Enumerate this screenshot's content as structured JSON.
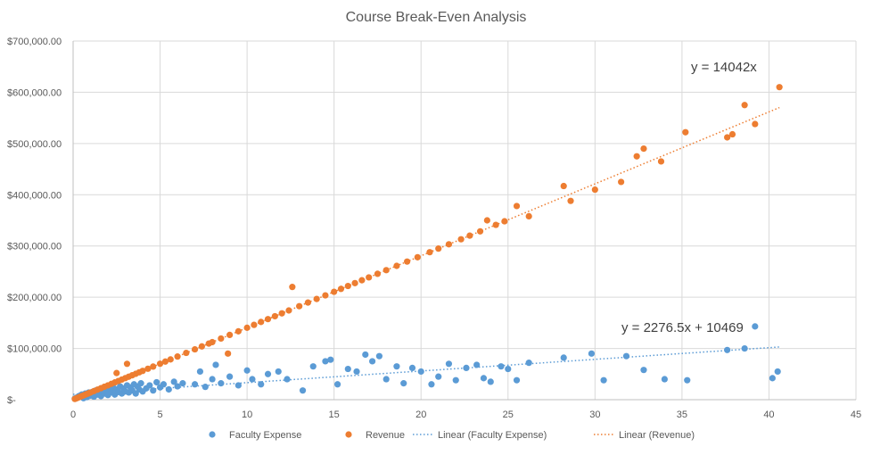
{
  "chart_data": {
    "type": "scatter",
    "title": "Course Break-Even Analysis",
    "xlabel": "",
    "ylabel": "",
    "xlim": [
      0,
      45
    ],
    "ylim": [
      0,
      700000
    ],
    "x_ticks": [
      "0",
      "5",
      "10",
      "15",
      "20",
      "25",
      "30",
      "35",
      "40",
      "45"
    ],
    "y_ticks": [
      "$-",
      "$100,000.00",
      "$200,000.00",
      "$300,000.00",
      "$400,000.00",
      "$500,000.00",
      "$600,000.00",
      "$700,000.00"
    ],
    "grid": true,
    "legend_position": "bottom",
    "legend": [
      {
        "label": "Faculty Expense",
        "kind": "marker",
        "color": "#5B9BD5"
      },
      {
        "label": "Revenue",
        "kind": "marker",
        "color": "#ED7D31"
      },
      {
        "label": "Linear (Faculty Expense)",
        "kind": "dotted-line",
        "color": "#5B9BD5"
      },
      {
        "label": "Linear (Revenue)",
        "kind": "dotted-line",
        "color": "#ED7D31"
      }
    ],
    "series": [
      {
        "name": "Faculty Expense",
        "color": "#5B9BD5",
        "points": [
          [
            0.1,
            2000
          ],
          [
            0.2,
            4000
          ],
          [
            0.3,
            6000
          ],
          [
            0.4,
            8000
          ],
          [
            0.5,
            10000
          ],
          [
            0.6,
            3000
          ],
          [
            0.7,
            12000
          ],
          [
            0.8,
            5000
          ],
          [
            0.9,
            14000
          ],
          [
            1.0,
            8000
          ],
          [
            1.1,
            15000
          ],
          [
            1.2,
            6000
          ],
          [
            1.3,
            18000
          ],
          [
            1.4,
            10000
          ],
          [
            1.5,
            20000
          ],
          [
            1.6,
            7000
          ],
          [
            1.7,
            16000
          ],
          [
            1.8,
            12000
          ],
          [
            1.9,
            22000
          ],
          [
            2.0,
            9000
          ],
          [
            2.1,
            18000
          ],
          [
            2.2,
            14000
          ],
          [
            2.3,
            24000
          ],
          [
            2.4,
            10000
          ],
          [
            2.5,
            20000
          ],
          [
            2.6,
            15000
          ],
          [
            2.7,
            26000
          ],
          [
            2.8,
            12000
          ],
          [
            2.9,
            22000
          ],
          [
            3.0,
            16000
          ],
          [
            3.1,
            28000
          ],
          [
            3.2,
            14000
          ],
          [
            3.3,
            24000
          ],
          [
            3.4,
            18000
          ],
          [
            3.5,
            30000
          ],
          [
            3.6,
            12000
          ],
          [
            3.7,
            26000
          ],
          [
            3.8,
            20000
          ],
          [
            3.9,
            32000
          ],
          [
            4.0,
            16000
          ],
          [
            4.2,
            22000
          ],
          [
            4.4,
            28000
          ],
          [
            4.6,
            18000
          ],
          [
            4.8,
            34000
          ],
          [
            5.0,
            24000
          ],
          [
            5.2,
            30000
          ],
          [
            5.5,
            20000
          ],
          [
            5.8,
            35000
          ],
          [
            6.0,
            26000
          ],
          [
            6.3,
            32000
          ],
          [
            7.0,
            30000
          ],
          [
            7.3,
            55000
          ],
          [
            7.6,
            25000
          ],
          [
            8.0,
            40000
          ],
          [
            8.2,
            68000
          ],
          [
            8.5,
            32000
          ],
          [
            9.0,
            45000
          ],
          [
            9.5,
            28000
          ],
          [
            10.0,
            57000
          ],
          [
            10.3,
            40000
          ],
          [
            10.8,
            30000
          ],
          [
            11.2,
            50000
          ],
          [
            11.8,
            55000
          ],
          [
            12.3,
            40000
          ],
          [
            13.2,
            18000
          ],
          [
            13.8,
            65000
          ],
          [
            14.5,
            75000
          ],
          [
            14.8,
            78000
          ],
          [
            15.2,
            30000
          ],
          [
            15.8,
            60000
          ],
          [
            16.3,
            55000
          ],
          [
            16.8,
            88000
          ],
          [
            17.2,
            75000
          ],
          [
            17.6,
            85000
          ],
          [
            18.0,
            40000
          ],
          [
            18.6,
            65000
          ],
          [
            19.0,
            32000
          ],
          [
            19.5,
            62000
          ],
          [
            20.0,
            55000
          ],
          [
            20.6,
            30000
          ],
          [
            21.0,
            45000
          ],
          [
            21.6,
            70000
          ],
          [
            22.0,
            38000
          ],
          [
            22.6,
            62000
          ],
          [
            23.2,
            68000
          ],
          [
            23.6,
            42000
          ],
          [
            24.0,
            35000
          ],
          [
            24.6,
            65000
          ],
          [
            25.0,
            60000
          ],
          [
            25.5,
            38000
          ],
          [
            26.2,
            72000
          ],
          [
            28.2,
            82000
          ],
          [
            29.8,
            90000
          ],
          [
            30.5,
            38000
          ],
          [
            31.8,
            85000
          ],
          [
            32.8,
            58000
          ],
          [
            34.0,
            40000
          ],
          [
            35.3,
            38000
          ],
          [
            37.6,
            97000
          ],
          [
            38.6,
            100000
          ],
          [
            39.2,
            143000
          ],
          [
            40.2,
            42000
          ],
          [
            40.5,
            55000
          ]
        ]
      },
      {
        "name": "Revenue",
        "color": "#ED7D31",
        "points": [
          [
            0.1,
            1400
          ],
          [
            0.2,
            2800
          ],
          [
            0.3,
            4200
          ],
          [
            0.4,
            5600
          ],
          [
            0.5,
            7000
          ],
          [
            0.6,
            8400
          ],
          [
            0.7,
            9800
          ],
          [
            0.8,
            11200
          ],
          [
            0.9,
            12600
          ],
          [
            1.0,
            14000
          ],
          [
            1.2,
            16800
          ],
          [
            1.4,
            19600
          ],
          [
            1.6,
            22400
          ],
          [
            1.8,
            25300
          ],
          [
            2.0,
            28000
          ],
          [
            2.2,
            30900
          ],
          [
            2.4,
            33700
          ],
          [
            2.5,
            52000
          ],
          [
            2.6,
            36500
          ],
          [
            2.8,
            39300
          ],
          [
            3.0,
            42100
          ],
          [
            3.1,
            70000
          ],
          [
            3.2,
            44900
          ],
          [
            3.4,
            47700
          ],
          [
            3.6,
            50500
          ],
          [
            3.8,
            53400
          ],
          [
            4.0,
            56200
          ],
          [
            4.3,
            60400
          ],
          [
            4.6,
            64600
          ],
          [
            5.0,
            70200
          ],
          [
            5.3,
            74400
          ],
          [
            5.6,
            78600
          ],
          [
            6.0,
            84200
          ],
          [
            6.5,
            91300
          ],
          [
            7.0,
            98300
          ],
          [
            7.4,
            104000
          ],
          [
            7.8,
            109500
          ],
          [
            8.0,
            112300
          ],
          [
            8.5,
            119400
          ],
          [
            8.9,
            90000
          ],
          [
            9.0,
            126400
          ],
          [
            9.5,
            133400
          ],
          [
            10.0,
            140400
          ],
          [
            10.4,
            146000
          ],
          [
            10.8,
            151700
          ],
          [
            11.2,
            157300
          ],
          [
            11.6,
            162900
          ],
          [
            12.0,
            168500
          ],
          [
            12.4,
            174100
          ],
          [
            12.6,
            220000
          ],
          [
            13.0,
            182500
          ],
          [
            13.5,
            189600
          ],
          [
            14.0,
            196600
          ],
          [
            14.5,
            203600
          ],
          [
            15.0,
            210600
          ],
          [
            15.4,
            216300
          ],
          [
            15.8,
            221900
          ],
          [
            16.2,
            227500
          ],
          [
            16.6,
            233100
          ],
          [
            17.0,
            238700
          ],
          [
            17.5,
            245700
          ],
          [
            18.0,
            252800
          ],
          [
            18.6,
            261200
          ],
          [
            19.2,
            269600
          ],
          [
            19.8,
            278000
          ],
          [
            20.5,
            287900
          ],
          [
            21.0,
            294900
          ],
          [
            21.6,
            303300
          ],
          [
            22.3,
            313100
          ],
          [
            22.8,
            320200
          ],
          [
            23.4,
            328600
          ],
          [
            23.8,
            350000
          ],
          [
            24.3,
            341200
          ],
          [
            24.8,
            348200
          ],
          [
            25.5,
            378000
          ],
          [
            26.2,
            358000
          ],
          [
            28.2,
            417000
          ],
          [
            28.6,
            388000
          ],
          [
            30.0,
            410000
          ],
          [
            31.5,
            425000
          ],
          [
            32.4,
            475000
          ],
          [
            32.8,
            490000
          ],
          [
            33.8,
            465000
          ],
          [
            35.2,
            522000
          ],
          [
            37.6,
            512000
          ],
          [
            37.9,
            518000
          ],
          [
            38.6,
            575000
          ],
          [
            39.2,
            538000
          ],
          [
            40.6,
            610000
          ]
        ]
      }
    ],
    "trendlines": [
      {
        "name": "Linear (Faculty Expense)",
        "slope": 2276.5,
        "intercept": 10469,
        "x_range": [
          0,
          40.6
        ],
        "equation": "y = 2276.5x + 10469",
        "color": "#5B9BD5"
      },
      {
        "name": "Linear (Revenue)",
        "slope": 14042,
        "intercept": 0,
        "x_range": [
          0,
          40.6
        ],
        "equation": "y = 14042x",
        "color": "#ED7D31"
      }
    ]
  }
}
